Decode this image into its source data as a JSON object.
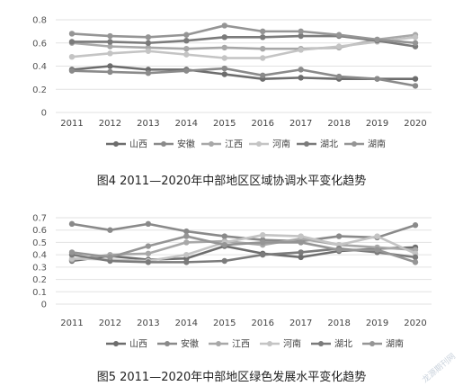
{
  "chart_data": [
    {
      "type": "line",
      "caption": "图4 2011—2020年中部地区区域协调水平变化趋势",
      "x": [
        "2011",
        "2012",
        "2013",
        "2014",
        "2015",
        "2016",
        "2017",
        "2018",
        "2019",
        "2020"
      ],
      "yticks": [
        "0",
        "0.2",
        "0.4",
        "0.6",
        "0.8"
      ],
      "ylim": [
        0,
        0.8
      ],
      "grid": true,
      "legend_position": "bottom",
      "series": [
        {
          "name": "山西",
          "color": "#6d6d6d",
          "values": [
            0.37,
            0.4,
            0.37,
            0.37,
            0.33,
            0.29,
            0.3,
            0.29,
            0.29,
            0.29
          ]
        },
        {
          "name": "安徽",
          "color": "#8a8a8a",
          "values": [
            0.36,
            0.35,
            0.34,
            0.36,
            0.38,
            0.32,
            0.37,
            0.31,
            0.29,
            0.23
          ]
        },
        {
          "name": "江西",
          "color": "#a8a8a8",
          "values": [
            0.6,
            0.57,
            0.56,
            0.55,
            0.56,
            0.55,
            0.55,
            0.56,
            0.63,
            0.67
          ]
        },
        {
          "name": "河南",
          "color": "#c4c4c4",
          "values": [
            0.48,
            0.51,
            0.53,
            0.5,
            0.47,
            0.47,
            0.54,
            0.57,
            0.61,
            0.65
          ]
        },
        {
          "name": "湖北",
          "color": "#7b7b7b",
          "values": [
            0.61,
            0.61,
            0.6,
            0.62,
            0.65,
            0.65,
            0.66,
            0.66,
            0.62,
            0.57
          ]
        },
        {
          "name": "湖南",
          "color": "#959595",
          "values": [
            0.68,
            0.66,
            0.65,
            0.67,
            0.75,
            0.7,
            0.7,
            0.67,
            0.63,
            0.6
          ]
        }
      ]
    },
    {
      "type": "line",
      "caption": "图5 2011—2020年中部地区绿色发展水平变化趋势",
      "x": [
        "2011",
        "2012",
        "2013",
        "2014",
        "2015",
        "2016",
        "2017",
        "2018",
        "2019",
        "2020"
      ],
      "yticks": [
        "0",
        "0.1",
        "0.2",
        "0.3",
        "0.4",
        "0.5",
        "0.6",
        "0.7"
      ],
      "ylim": [
        0,
        0.7
      ],
      "grid": true,
      "legend_position": "bottom",
      "series": [
        {
          "name": "山西",
          "color": "#6d6d6d",
          "values": [
            0.35,
            0.39,
            0.36,
            0.37,
            0.47,
            0.41,
            0.38,
            0.43,
            0.45,
            0.46
          ]
        },
        {
          "name": "安徽",
          "color": "#8a8a8a",
          "values": [
            0.65,
            0.6,
            0.65,
            0.59,
            0.55,
            0.52,
            0.51,
            0.55,
            0.54,
            0.64
          ]
        },
        {
          "name": "江西",
          "color": "#a8a8a8",
          "values": [
            0.36,
            0.4,
            0.41,
            0.5,
            0.51,
            0.48,
            0.53,
            0.48,
            0.46,
            0.44
          ]
        },
        {
          "name": "河南",
          "color": "#c4c4c4",
          "values": [
            0.37,
            0.36,
            0.35,
            0.4,
            0.5,
            0.56,
            0.55,
            0.48,
            0.55,
            0.41
          ]
        },
        {
          "name": "湖北",
          "color": "#7b7b7b",
          "values": [
            0.4,
            0.35,
            0.34,
            0.34,
            0.35,
            0.4,
            0.42,
            0.45,
            0.42,
            0.38
          ]
        },
        {
          "name": "湖南",
          "color": "#959595",
          "values": [
            0.42,
            0.38,
            0.47,
            0.55,
            0.48,
            0.5,
            0.5,
            0.44,
            0.44,
            0.34
          ]
        }
      ]
    }
  ],
  "watermark": "龙源期刊网"
}
